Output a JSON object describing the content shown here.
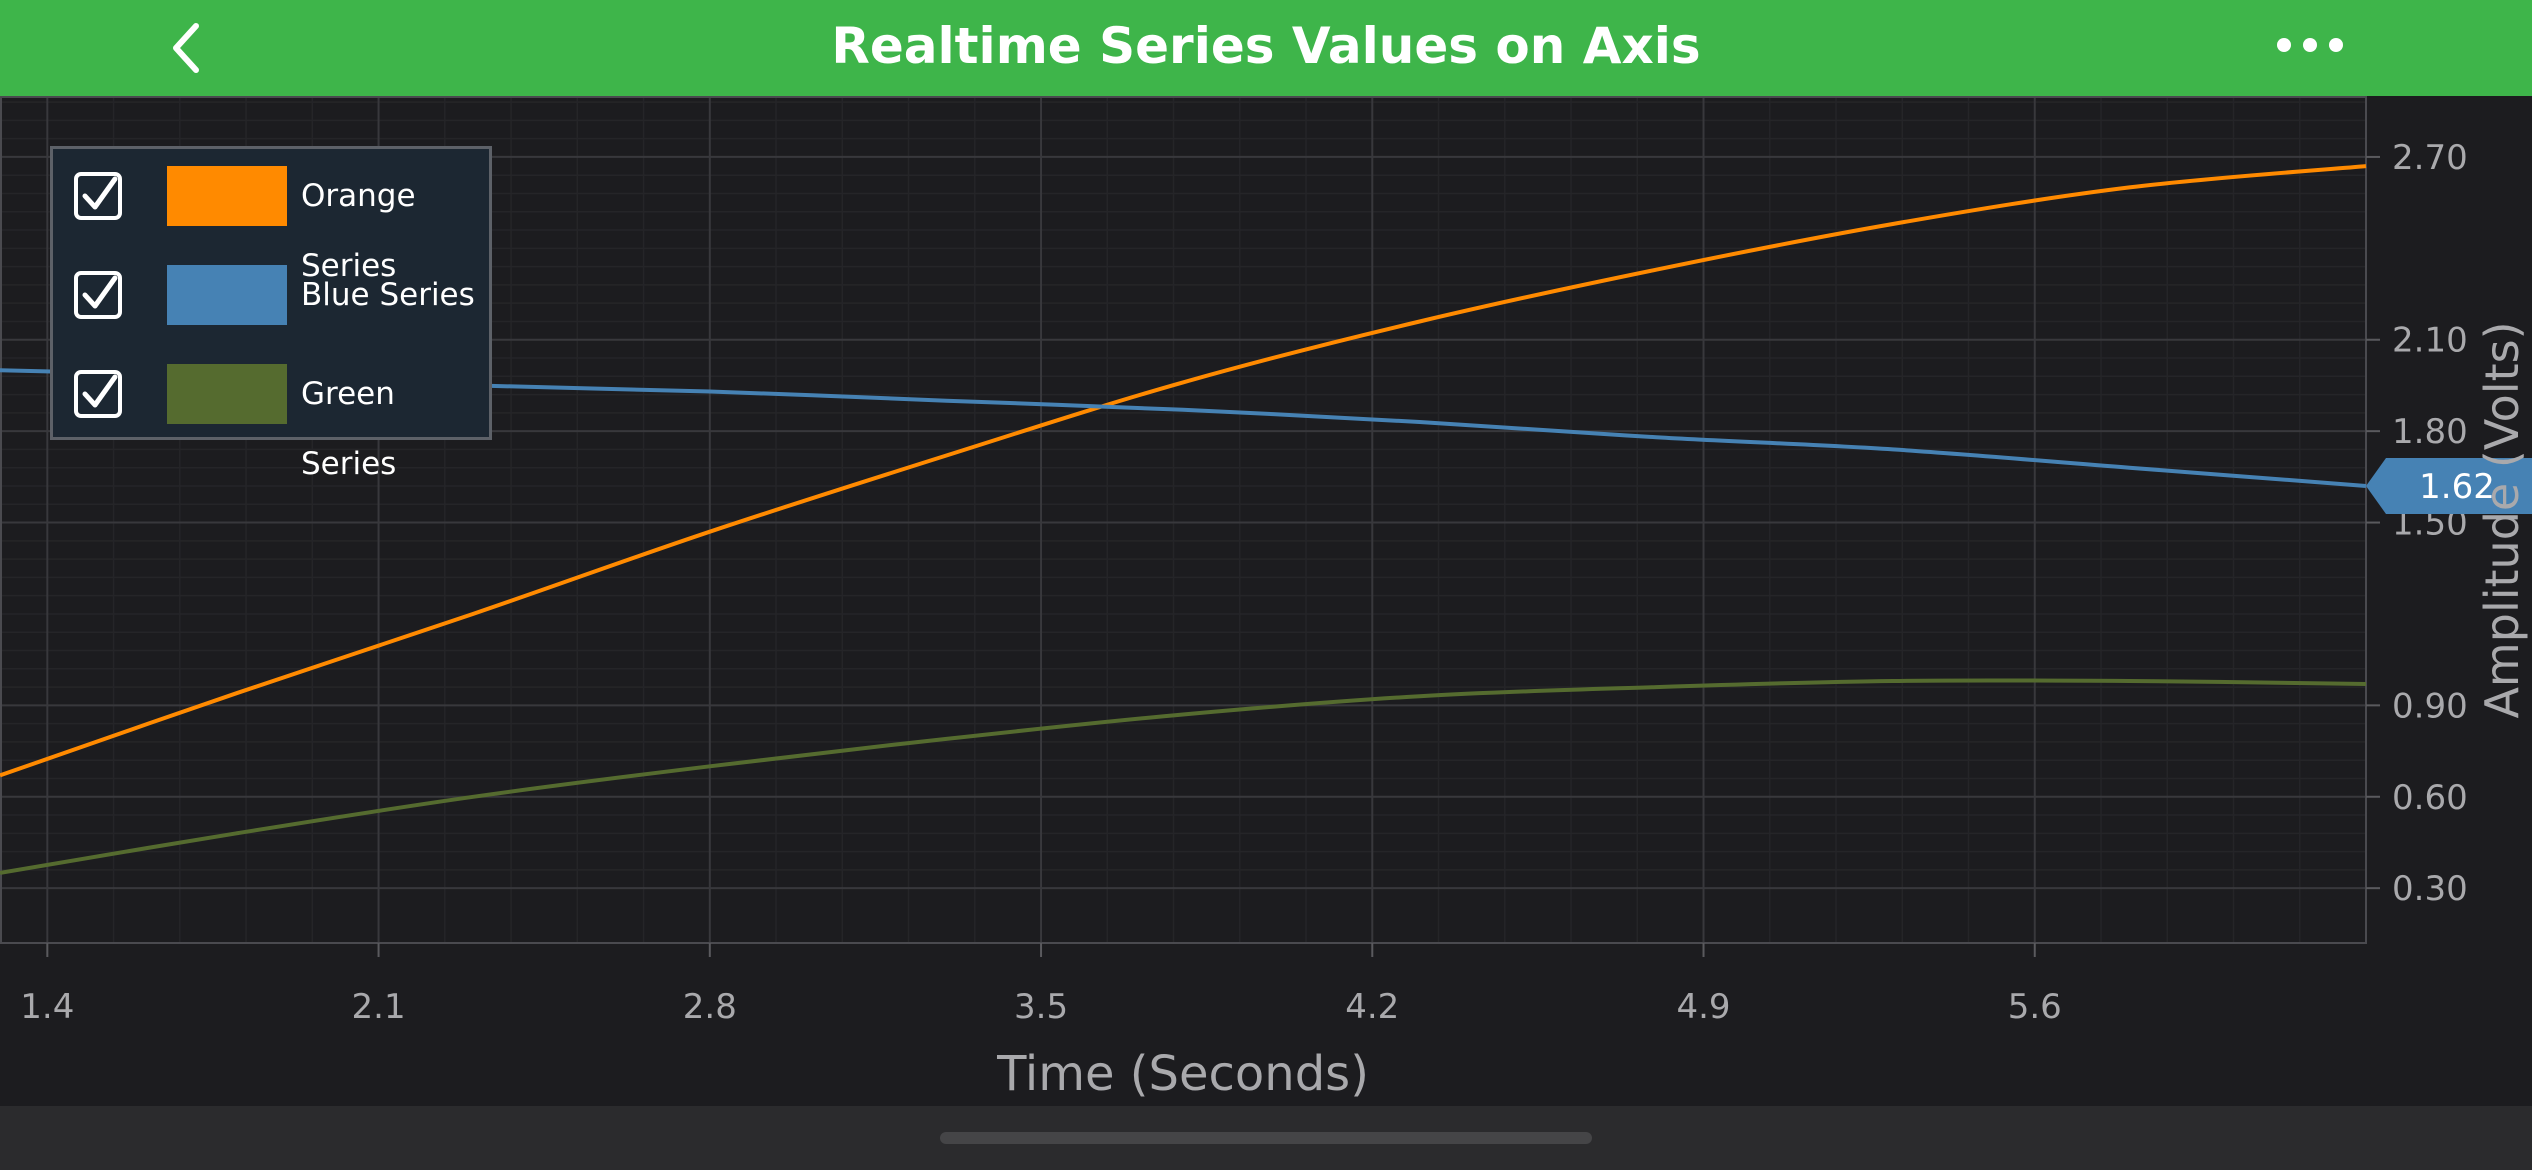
{
  "header": {
    "title": "Realtime Series Values on Axis",
    "background": "#3eb54a"
  },
  "chart_data": {
    "type": "line",
    "xlabel": "Time (Seconds)",
    "ylabel": "Amplitude (Volts)",
    "xlim": [
      1.3,
      6.3
    ],
    "ylim": [
      0.12,
      2.9
    ],
    "x_ticks": [
      "1.4",
      "2.1",
      "2.8",
      "3.5",
      "4.2",
      "4.9",
      "5.6"
    ],
    "y_ticks": [
      "0.30",
      "0.60",
      "0.90",
      "1.50",
      "1.80",
      "2.10",
      "2.70"
    ],
    "grid": true,
    "legend_position": "top-left",
    "series": [
      {
        "name": "Orange Series",
        "color": "#ff8a00",
        "x": [
          1.3,
          1.8,
          2.3,
          2.8,
          3.3,
          3.8,
          4.3,
          4.8,
          5.3,
          5.8,
          6.3
        ],
        "y": [
          0.67,
          0.94,
          1.2,
          1.47,
          1.72,
          1.96,
          2.16,
          2.33,
          2.48,
          2.6,
          2.67
        ]
      },
      {
        "name": "Blue Series",
        "color": "#4682b4",
        "x": [
          1.3,
          1.8,
          2.3,
          2.8,
          3.3,
          3.8,
          4.3,
          4.8,
          5.3,
          5.8,
          6.3
        ],
        "y": [
          2.0,
          1.98,
          1.95,
          1.93,
          1.9,
          1.87,
          1.83,
          1.78,
          1.74,
          1.68,
          1.62
        ]
      },
      {
        "name": "Green Series",
        "color": "#556b2f",
        "x": [
          1.3,
          1.8,
          2.3,
          2.8,
          3.3,
          3.8,
          4.3,
          4.8,
          5.3,
          5.8,
          6.3
        ],
        "y": [
          0.35,
          0.48,
          0.6,
          0.7,
          0.79,
          0.87,
          0.93,
          0.96,
          0.98,
          0.98,
          0.97
        ]
      }
    ],
    "axis_marker": {
      "value": "1.62",
      "y": 1.62,
      "color": "#4682b4"
    }
  },
  "legend": {
    "items": [
      {
        "label": "Orange Series",
        "color": "#ff8a00"
      },
      {
        "label": "Blue Series",
        "color": "#4682b4"
      },
      {
        "label": "Green Series",
        "color": "#556b2f"
      }
    ]
  },
  "icons": {
    "back": "chevron-left-icon",
    "more": "more-horizontal-icon",
    "check": "checkbox-checked-icon"
  }
}
